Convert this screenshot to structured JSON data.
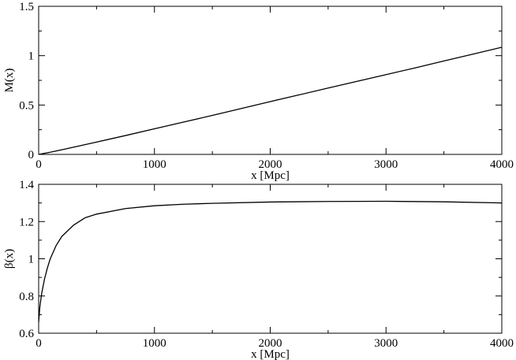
{
  "chart_data": [
    {
      "type": "line",
      "xlabel": "x [Mpc]",
      "ylabel": "M(x)",
      "xlim": [
        0,
        4000
      ],
      "ylim": [
        0,
        1.5
      ],
      "xticks": [
        0,
        1000,
        2000,
        3000,
        4000
      ],
      "xtick_labels": [
        "0",
        "1000",
        "2000",
        "3000",
        "4000"
      ],
      "yticks": [
        0,
        0.5,
        1,
        1.5
      ],
      "ytick_labels": [
        "0",
        "0.5",
        "1",
        "1.5"
      ],
      "grid": false,
      "series": [
        {
          "color": "#000000",
          "x": [
            0,
            100,
            200,
            300,
            400,
            500,
            750,
            1000,
            1250,
            1500,
            1750,
            2000,
            2250,
            2500,
            2750,
            3000,
            3250,
            3500,
            3750,
            4000
          ],
          "y": [
            0,
            0.022,
            0.047,
            0.073,
            0.099,
            0.125,
            0.191,
            0.259,
            0.327,
            0.395,
            0.465,
            0.535,
            0.603,
            0.672,
            0.74,
            0.808,
            0.876,
            0.946,
            1.015,
            1.085
          ]
        }
      ]
    },
    {
      "type": "line",
      "xlabel": "x [Mpc]",
      "ylabel": "β(x)",
      "xlim": [
        0,
        4000
      ],
      "ylim": [
        0.6,
        1.4
      ],
      "xticks": [
        0,
        1000,
        2000,
        3000,
        4000
      ],
      "xtick_labels": [
        "0",
        "1000",
        "2000",
        "3000",
        "4000"
      ],
      "yticks": [
        0.6,
        0.8,
        1,
        1.2,
        1.4
      ],
      "ytick_labels": [
        "0.6",
        "0.8",
        "1",
        "1.2",
        "1.4"
      ],
      "grid": false,
      "series": [
        {
          "color": "#000000",
          "x": [
            0,
            10,
            25,
            50,
            75,
            100,
            150,
            200,
            300,
            400,
            500,
            750,
            1000,
            1250,
            1500,
            2000,
            2500,
            3000,
            3500,
            4000
          ],
          "y": [
            0.66,
            0.74,
            0.81,
            0.89,
            0.95,
            1.0,
            1.07,
            1.12,
            1.18,
            1.22,
            1.24,
            1.27,
            1.285,
            1.293,
            1.298,
            1.305,
            1.308,
            1.309,
            1.306,
            1.3
          ]
        }
      ]
    }
  ]
}
